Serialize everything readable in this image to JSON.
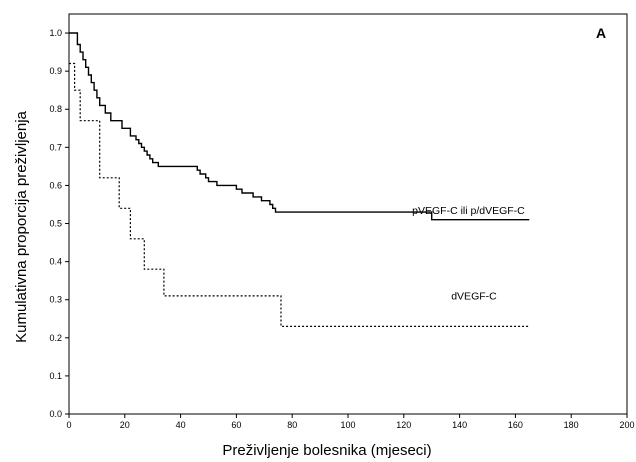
{
  "chart_data": {
    "type": "line",
    "panel_label": "A",
    "xlabel": "Preživljenje bolesnika (mjeseci)",
    "ylabel": "Kumulativna proporcija preživljenja",
    "xlim": [
      0,
      200
    ],
    "ylim": [
      0,
      1.05
    ],
    "x_ticks": [
      0,
      20,
      40,
      60,
      80,
      100,
      120,
      140,
      160,
      180,
      200
    ],
    "y_ticks": [
      0.0,
      0.1,
      0.2,
      0.3,
      0.4,
      0.5,
      0.6,
      0.7,
      0.8,
      0.9,
      1.0
    ],
    "y_tick_labels": [
      "0.0",
      "0.1",
      "0.2",
      "0.3",
      "0.4",
      "0.5",
      "0.6",
      "0.7",
      "0.8",
      "0.9",
      "1.0"
    ],
    "grid": false,
    "series": [
      {
        "name": "pVEGF-C ili p/dVEGF-C",
        "style": "solid",
        "color": "#000000",
        "x": [
          0,
          3,
          4,
          5,
          6,
          7,
          8,
          9,
          10,
          11,
          13,
          15,
          19,
          22,
          24,
          25,
          26,
          27,
          28,
          29,
          30,
          31,
          32,
          33,
          35,
          40,
          46,
          47,
          49,
          50,
          52,
          53,
          56,
          60,
          62,
          66,
          69,
          72,
          73,
          74,
          75,
          76,
          78,
          130,
          165
        ],
        "y": [
          1.0,
          0.97,
          0.95,
          0.93,
          0.91,
          0.89,
          0.87,
          0.85,
          0.83,
          0.81,
          0.79,
          0.77,
          0.75,
          0.73,
          0.72,
          0.71,
          0.7,
          0.69,
          0.68,
          0.67,
          0.66,
          0.66,
          0.65,
          0.65,
          0.65,
          0.65,
          0.64,
          0.63,
          0.62,
          0.61,
          0.61,
          0.6,
          0.6,
          0.59,
          0.58,
          0.57,
          0.56,
          0.55,
          0.54,
          0.53,
          0.53,
          0.53,
          0.53,
          0.51,
          0.51
        ],
        "label_position": {
          "x": 123,
          "y": 0.525
        }
      },
      {
        "name": "dVEGF-C",
        "style": "dotted",
        "color": "#000000",
        "x": [
          0,
          2,
          4,
          11,
          13,
          18,
          20,
          22,
          27,
          31,
          34,
          76,
          165
        ],
        "y": [
          0.92,
          0.85,
          0.77,
          0.62,
          0.62,
          0.54,
          0.54,
          0.46,
          0.38,
          0.38,
          0.31,
          0.23,
          0.23
        ],
        "label_position": {
          "x": 137,
          "y": 0.3
        }
      }
    ]
  }
}
